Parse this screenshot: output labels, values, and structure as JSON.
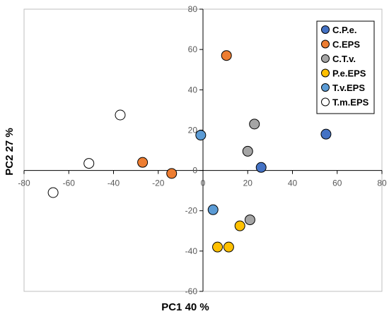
{
  "chart_data": {
    "type": "scatter",
    "title": "",
    "xlabel": "PC1 40 %",
    "ylabel": "PC2  27 %",
    "xlim": [
      -80,
      80
    ],
    "ylim": [
      -60,
      80
    ],
    "xticks": [
      -80,
      -60,
      -40,
      -20,
      0,
      20,
      40,
      60,
      80
    ],
    "yticks": [
      -60,
      -40,
      -20,
      0,
      20,
      40,
      60,
      80
    ],
    "grid": false,
    "legend_position": "top-right",
    "series": [
      {
        "name": "C.P.e.",
        "color": "#4472C4",
        "points": [
          {
            "x": 55,
            "y": 18
          },
          {
            "x": 26,
            "y": 1.5
          }
        ]
      },
      {
        "name": "C.EPS",
        "color": "#ED7D31",
        "points": [
          {
            "x": 10.5,
            "y": 57
          },
          {
            "x": -27,
            "y": 4
          },
          {
            "x": -14,
            "y": -1.5
          }
        ]
      },
      {
        "name": "C.T.v.",
        "color": "#A5A5A5",
        "points": [
          {
            "x": 23,
            "y": 23
          },
          {
            "x": 20,
            "y": 9.5
          },
          {
            "x": 21,
            "y": -24.5
          }
        ]
      },
      {
        "name": "P.e.EPS",
        "color": "#FFC000",
        "points": [
          {
            "x": 16.5,
            "y": -27.5
          },
          {
            "x": 6.5,
            "y": -38
          },
          {
            "x": 11.5,
            "y": -38
          }
        ]
      },
      {
        "name": "T.v.EPS",
        "color": "#5B9BD5",
        "points": [
          {
            "x": -1,
            "y": 17.5
          },
          {
            "x": 4.5,
            "y": -19.5
          }
        ]
      },
      {
        "name": "T.m.EPS",
        "color": "#FFFFFF",
        "points": [
          {
            "x": -37,
            "y": 27.5
          },
          {
            "x": -51,
            "y": 3.5
          },
          {
            "x": -67,
            "y": -11
          }
        ]
      }
    ]
  }
}
